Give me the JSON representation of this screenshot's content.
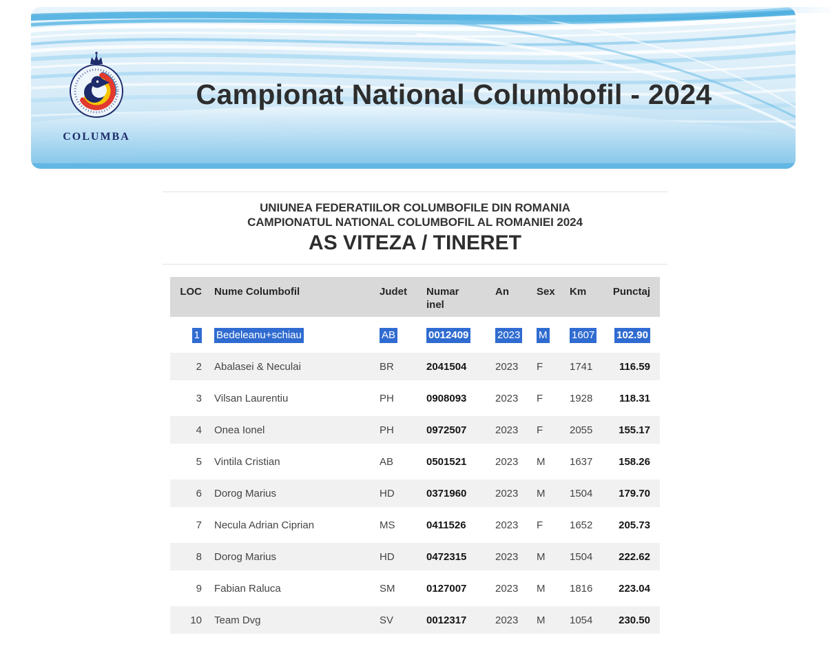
{
  "banner": {
    "title": "Campionat National Columbofil - 2024",
    "logo_text": "COLUMBA"
  },
  "subtitle": {
    "line1": "UNIUNEA FEDERATIILOR COLUMBOFILE DIN ROMANIA",
    "line2": "CAMPIONATUL NATIONAL COLUMBOFIL AL ROMANIEI 2024",
    "line3": "AS VITEZA / TINERET"
  },
  "table": {
    "selected_row_index": 0,
    "columns": [
      {
        "key": "loc",
        "label": "LOC"
      },
      {
        "key": "nume",
        "label": "Nume Columbofil"
      },
      {
        "key": "judet",
        "label": "Judet"
      },
      {
        "key": "inel",
        "label": "Numar inel"
      },
      {
        "key": "an",
        "label": "An"
      },
      {
        "key": "sex",
        "label": "Sex"
      },
      {
        "key": "km",
        "label": "Km"
      },
      {
        "key": "punctaj",
        "label": "Punctaj"
      }
    ],
    "rows": [
      {
        "loc": "1",
        "nume": "Bedeleanu+schiau",
        "judet": "AB",
        "inel": "0012409",
        "an": "2023",
        "sex": "M",
        "km": "1607",
        "punctaj": "102.90"
      },
      {
        "loc": "2",
        "nume": "Abalasei & Neculai",
        "judet": "BR",
        "inel": "2041504",
        "an": "2023",
        "sex": "F",
        "km": "1741",
        "punctaj": "116.59"
      },
      {
        "loc": "3",
        "nume": "Vilsan Laurentiu",
        "judet": "PH",
        "inel": "0908093",
        "an": "2023",
        "sex": "F",
        "km": "1928",
        "punctaj": "118.31"
      },
      {
        "loc": "4",
        "nume": "Onea Ionel",
        "judet": "PH",
        "inel": "0972507",
        "an": "2023",
        "sex": "F",
        "km": "2055",
        "punctaj": "155.17"
      },
      {
        "loc": "5",
        "nume": "Vintila Cristian",
        "judet": "AB",
        "inel": "0501521",
        "an": "2023",
        "sex": "M",
        "km": "1637",
        "punctaj": "158.26"
      },
      {
        "loc": "6",
        "nume": "Dorog Marius",
        "judet": "HD",
        "inel": "0371960",
        "an": "2023",
        "sex": "M",
        "km": "1504",
        "punctaj": "179.70"
      },
      {
        "loc": "7",
        "nume": "Necula Adrian Ciprian",
        "judet": "MS",
        "inel": "0411526",
        "an": "2023",
        "sex": "F",
        "km": "1652",
        "punctaj": "205.73"
      },
      {
        "loc": "8",
        "nume": "Dorog Marius",
        "judet": "HD",
        "inel": "0472315",
        "an": "2023",
        "sex": "M",
        "km": "1504",
        "punctaj": "222.62"
      },
      {
        "loc": "9",
        "nume": "Fabian Raluca",
        "judet": "SM",
        "inel": "0127007",
        "an": "2023",
        "sex": "M",
        "km": "1816",
        "punctaj": "223.04"
      },
      {
        "loc": "10",
        "nume": "Team Dvg",
        "judet": "SV",
        "inel": "0012317",
        "an": "2023",
        "sex": "M",
        "km": "1054",
        "punctaj": "230.50"
      }
    ]
  },
  "colors": {
    "selection_blue": "#2f6bd0",
    "header_gray": "#d9d9d9",
    "row_alt_gray": "#f1f1f1",
    "rule_gray": "#e3e3e3",
    "title_color": "#2d2d2d",
    "subtitle_color": "#333333",
    "logo_navy": "#1d2b6b",
    "logo_yellow": "#f6c500",
    "logo_red": "#e23a2e",
    "logo_blue": "#3a7fc1",
    "banner_blue": "#49acdd"
  }
}
